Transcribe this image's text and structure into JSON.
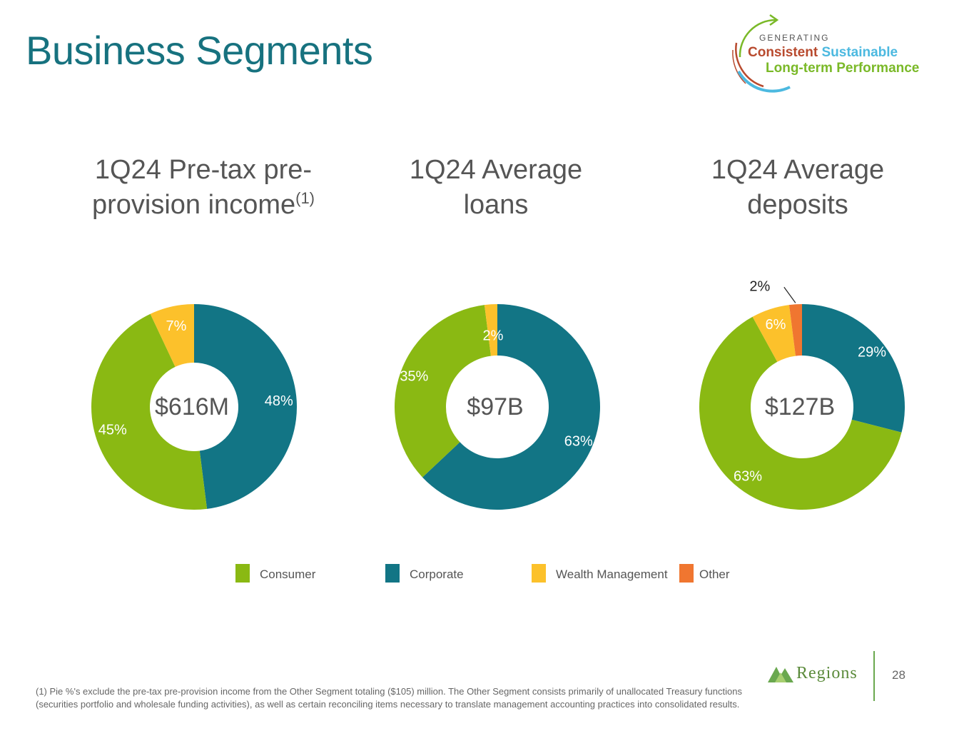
{
  "slide": {
    "title": "Business Segments",
    "page_number": "28",
    "footnote": "(1) Pie %'s exclude the pre-tax pre-provision income from the Other Segment totaling ($105) million. The Other Segment consists primarily of unallocated Treasury functions (securities portfolio and wholesale funding activities), as well as certain reconciling items necessary to translate management accounting practices into consolidated results.",
    "logo_text": "Regions"
  },
  "tagline": {
    "small": "GENERATING",
    "consistent": "Consistent",
    "sustainable": "Sustainable",
    "line2": "Long-term Performance"
  },
  "colors": {
    "Consumer": "#8ab913",
    "Corporate": "#127585",
    "Wealth Management": "#fcc12b",
    "Other": "#f07630",
    "title": "#17727f"
  },
  "legend": [
    {
      "label": "Consumer"
    },
    {
      "label": "Corporate"
    },
    {
      "label": "Wealth Management"
    },
    {
      "label": "Other"
    }
  ],
  "chart_data": [
    {
      "type": "pie",
      "title_line1": "1Q24 Pre-tax pre-",
      "title_line2": "provision income",
      "title_sup": "(1)",
      "center_label": "$616M",
      "categories": [
        "Corporate",
        "Consumer",
        "Wealth Management"
      ],
      "values": [
        48,
        45,
        7
      ],
      "labels": [
        "48%",
        "45%",
        "7%"
      ]
    },
    {
      "type": "pie",
      "title_line1": "1Q24 Average",
      "title_line2": "loans",
      "center_label": "$97B",
      "categories": [
        "Corporate",
        "Consumer",
        "Wealth Management"
      ],
      "values": [
        63,
        35,
        2
      ],
      "labels": [
        "63%",
        "35%",
        "2%"
      ]
    },
    {
      "type": "pie",
      "title_line1": "1Q24 Average",
      "title_line2": "deposits",
      "center_label": "$127B",
      "categories": [
        "Corporate",
        "Consumer",
        "Wealth Management",
        "Other"
      ],
      "values": [
        29,
        63,
        6,
        2
      ],
      "labels": [
        "29%",
        "63%",
        "6%",
        "2%"
      ]
    }
  ]
}
